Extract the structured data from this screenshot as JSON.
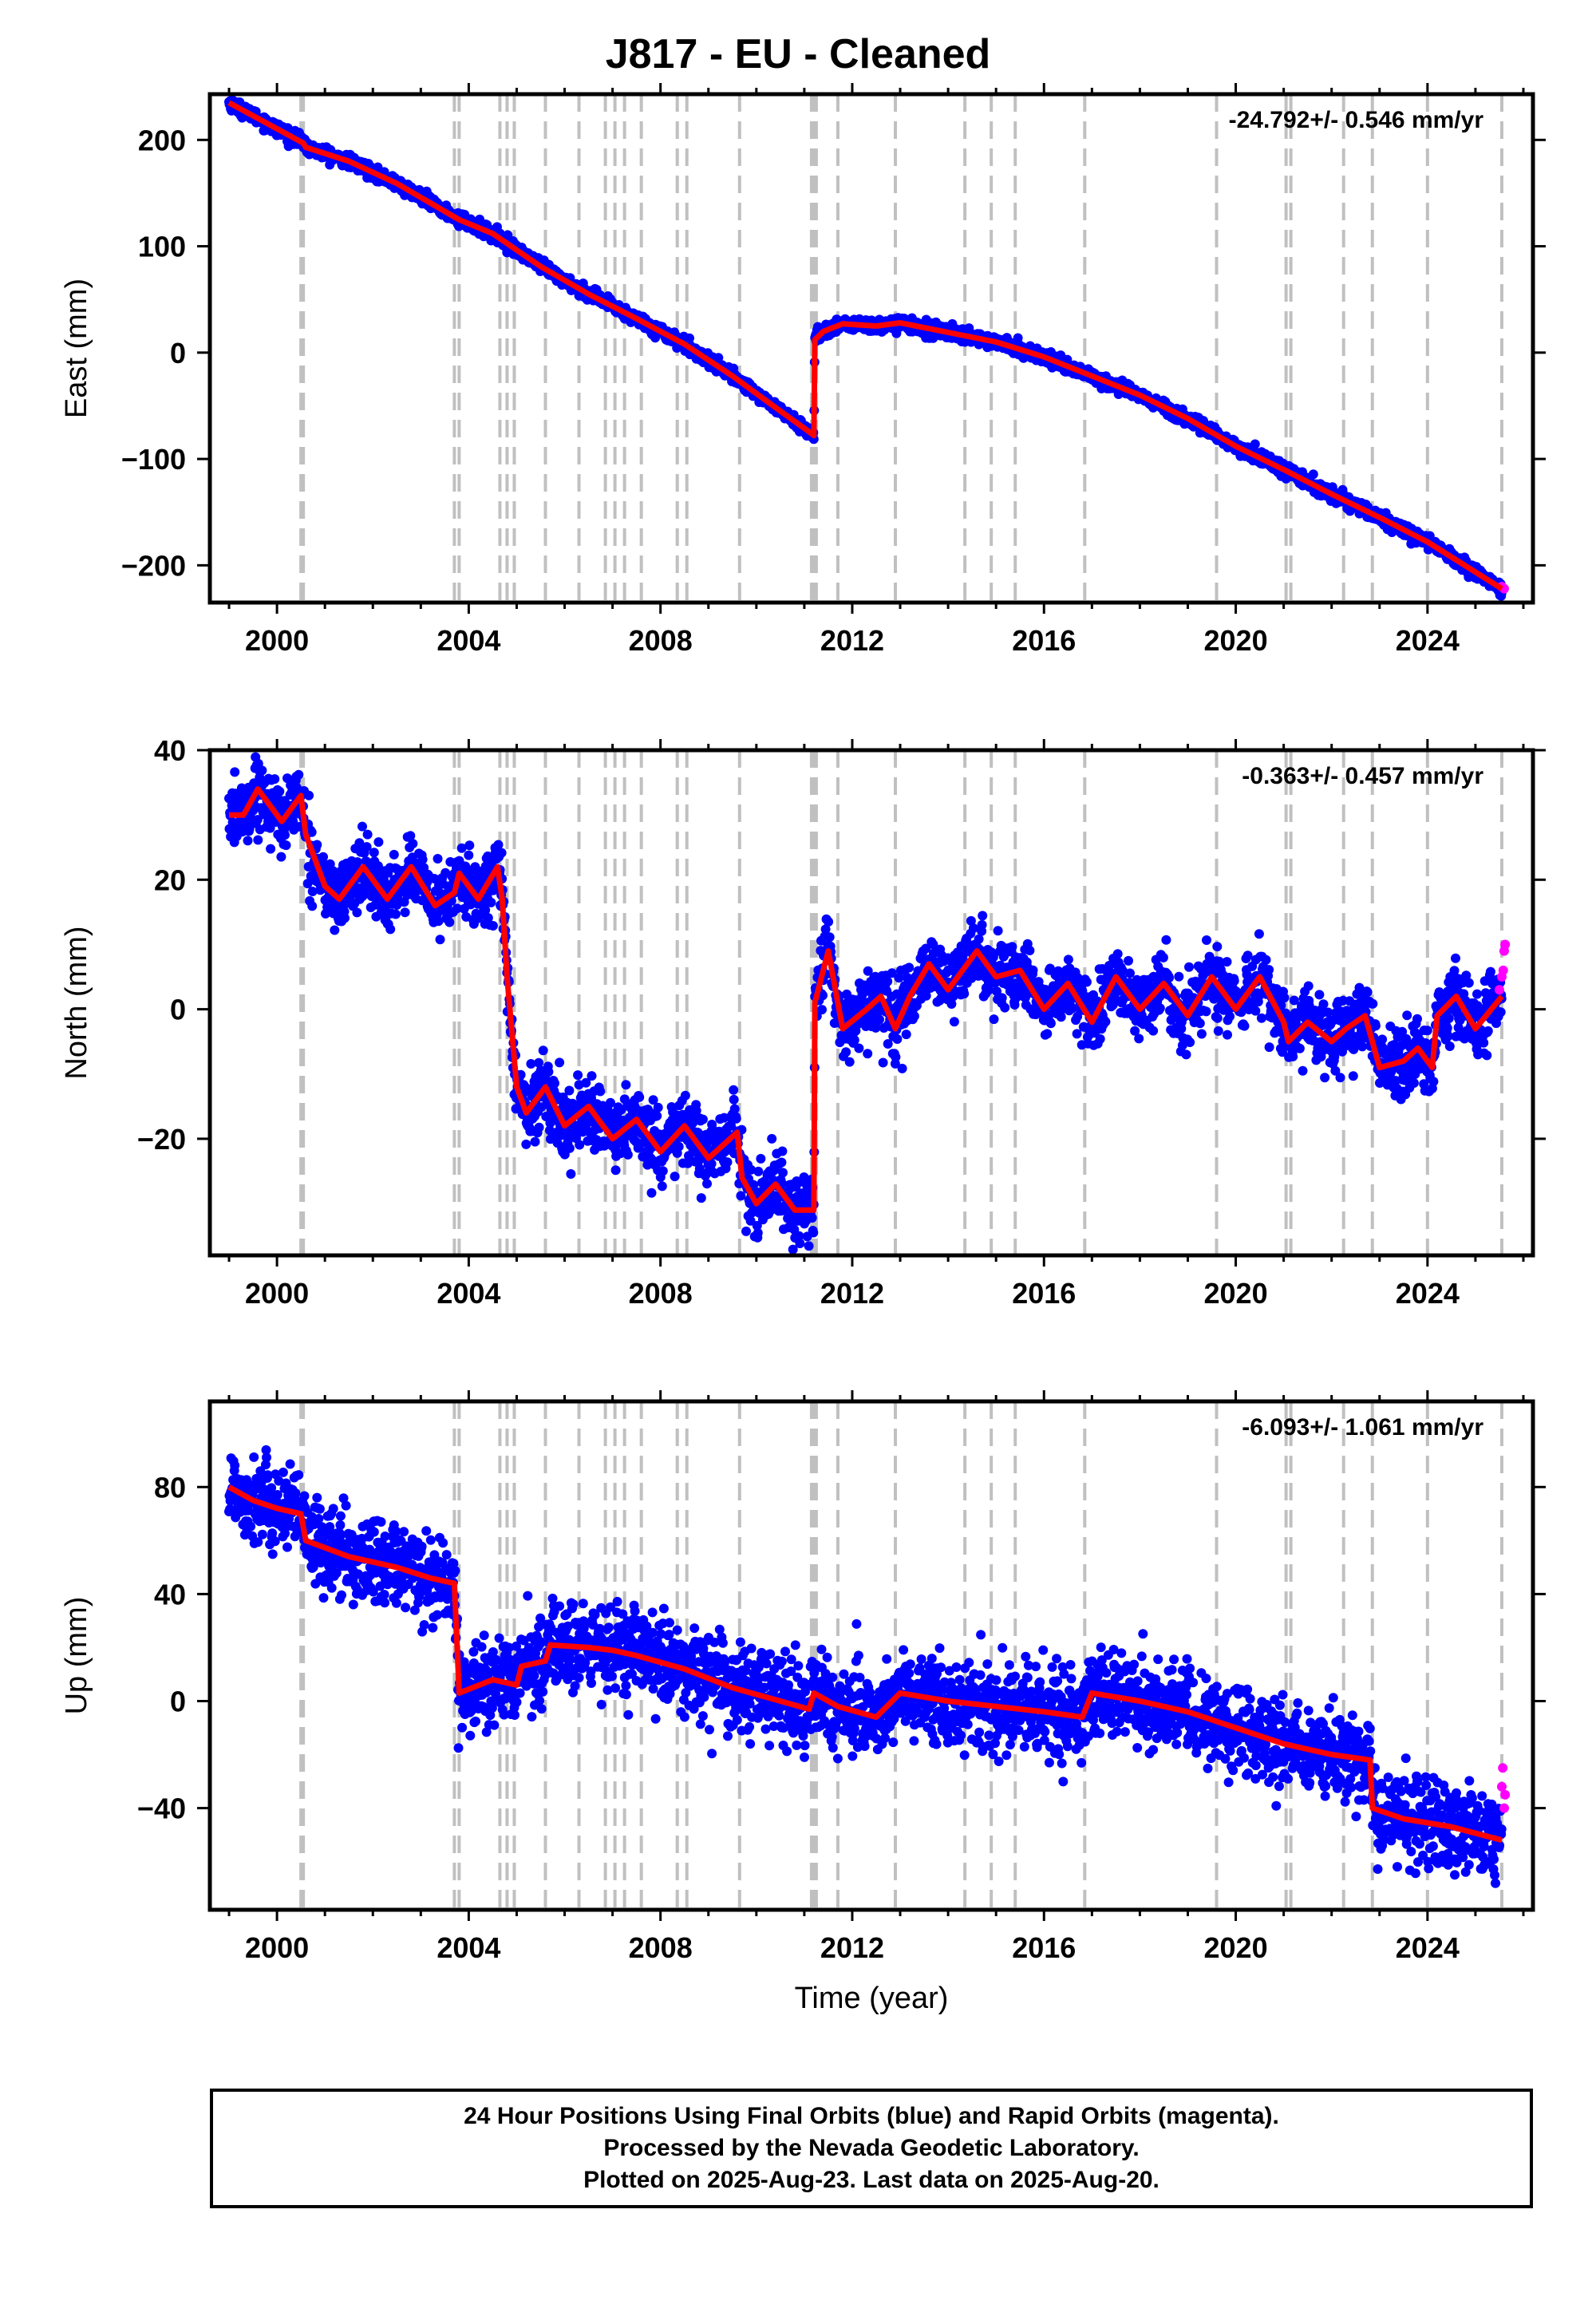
{
  "title": "J817  - EU - Cleaned",
  "colors": {
    "final": "#0000ff",
    "rapid": "#ff00ff",
    "model": "#ff0000",
    "events": "#c0c0c0",
    "frame": "#000000"
  },
  "footer": {
    "line1": "24 Hour Positions Using Final Orbits (blue) and Rapid Orbits (magenta).",
    "line2": "Processed by the Nevada Geodetic Laboratory.",
    "line3": "Plotted on 2025-Aug-23. Last data on 2025-Aug-20."
  },
  "chart_data": [
    {
      "type": "scatter",
      "component": "east",
      "ylabel": "East (mm)",
      "xlabel": "",
      "rate_label": "-24.792+/- 0.546 mm/yr",
      "xlim": [
        1998.6,
        2026.2
      ],
      "ylim": [
        -235,
        243
      ],
      "xticks": [
        2000,
        2004,
        2008,
        2012,
        2016,
        2020,
        2024
      ],
      "yticks": [
        -200,
        -100,
        0,
        100,
        200
      ],
      "ytick_labels": [
        "−200",
        "−100",
        "0",
        "100",
        "200"
      ],
      "model": [
        [
          1999.0,
          235
        ],
        [
          2000.55,
          197
        ],
        [
          2000.6,
          193
        ],
        [
          2001.5,
          180
        ],
        [
          2002.5,
          159
        ],
        [
          2003.8,
          125
        ],
        [
          2004.5,
          112
        ],
        [
          2005.5,
          81
        ],
        [
          2006.5,
          55
        ],
        [
          2007.5,
          32
        ],
        [
          2008.5,
          8
        ],
        [
          2009.5,
          -22
        ],
        [
          2010.5,
          -55
        ],
        [
          2011.15,
          -76
        ],
        [
          2011.2,
          -78
        ],
        [
          2011.22,
          12
        ],
        [
          2011.4,
          20
        ],
        [
          2011.8,
          27
        ],
        [
          2012.5,
          25
        ],
        [
          2013.0,
          28
        ],
        [
          2014.0,
          19
        ],
        [
          2015.0,
          10
        ],
        [
          2016.0,
          -4
        ],
        [
          2017.0,
          -22
        ],
        [
          2018.0,
          -40
        ],
        [
          2019.0,
          -62
        ],
        [
          2020.0,
          -88
        ],
        [
          2021.0,
          -110
        ],
        [
          2022.0,
          -133
        ],
        [
          2023.0,
          -155
        ],
        [
          2024.0,
          -178
        ],
        [
          2025.55,
          -222
        ]
      ],
      "scatter_sigma": 3,
      "rapid": [
        [
          2025.55,
          -220
        ],
        [
          2025.6,
          -222
        ]
      ]
    },
    {
      "type": "scatter",
      "component": "north",
      "ylabel": "North (mm)",
      "xlabel": "",
      "rate_label": "-0.363+/- 0.457 mm/yr",
      "xlim": [
        1998.6,
        2026.2
      ],
      "ylim": [
        -38,
        40
      ],
      "xticks": [
        2000,
        2004,
        2008,
        2012,
        2016,
        2020,
        2024
      ],
      "yticks": [
        -20,
        0,
        20,
        40
      ],
      "ytick_labels": [
        "−20",
        "0",
        "20",
        "40"
      ],
      "model": [
        [
          1999.0,
          30
        ],
        [
          1999.3,
          30
        ],
        [
          1999.6,
          34
        ],
        [
          2000.1,
          29
        ],
        [
          2000.5,
          33
        ],
        [
          2000.6,
          27
        ],
        [
          2001.0,
          19
        ],
        [
          2001.3,
          17
        ],
        [
          2001.8,
          22
        ],
        [
          2002.3,
          17
        ],
        [
          2002.8,
          22
        ],
        [
          2003.3,
          16
        ],
        [
          2003.7,
          18
        ],
        [
          2003.8,
          21
        ],
        [
          2004.2,
          17
        ],
        [
          2004.6,
          22
        ],
        [
          2004.7,
          17
        ],
        [
          2004.8,
          5
        ],
        [
          2005.0,
          -12
        ],
        [
          2005.2,
          -16
        ],
        [
          2005.6,
          -12
        ],
        [
          2006.0,
          -18
        ],
        [
          2006.5,
          -15
        ],
        [
          2007.0,
          -20
        ],
        [
          2007.5,
          -17
        ],
        [
          2008.0,
          -22
        ],
        [
          2008.5,
          -18
        ],
        [
          2009.0,
          -23
        ],
        [
          2009.6,
          -19
        ],
        [
          2009.7,
          -26
        ],
        [
          2010.0,
          -30
        ],
        [
          2010.4,
          -27
        ],
        [
          2010.8,
          -31
        ],
        [
          2011.15,
          -31
        ],
        [
          2011.2,
          -31
        ],
        [
          2011.22,
          1
        ],
        [
          2011.5,
          9
        ],
        [
          2011.8,
          -3
        ],
        [
          2012.3,
          0
        ],
        [
          2012.6,
          2
        ],
        [
          2012.9,
          -3
        ],
        [
          2013.2,
          2
        ],
        [
          2013.6,
          7
        ],
        [
          2014.0,
          3
        ],
        [
          2014.6,
          9
        ],
        [
          2015.0,
          5
        ],
        [
          2015.5,
          6
        ],
        [
          2016.0,
          0
        ],
        [
          2016.5,
          4
        ],
        [
          2017.0,
          -2
        ],
        [
          2017.5,
          5
        ],
        [
          2018.0,
          0
        ],
        [
          2018.5,
          4
        ],
        [
          2019.0,
          -1
        ],
        [
          2019.5,
          5
        ],
        [
          2020.0,
          0
        ],
        [
          2020.5,
          5
        ],
        [
          2021.0,
          -2
        ],
        [
          2021.1,
          -5
        ],
        [
          2021.5,
          -2
        ],
        [
          2022.0,
          -5
        ],
        [
          2022.3,
          -3
        ],
        [
          2022.7,
          -1
        ],
        [
          2023.0,
          -9
        ],
        [
          2023.5,
          -8
        ],
        [
          2023.8,
          -6
        ],
        [
          2024.1,
          -9
        ],
        [
          2024.2,
          -1
        ],
        [
          2024.6,
          2
        ],
        [
          2025.0,
          -3
        ],
        [
          2025.55,
          2
        ]
      ],
      "scatter_sigma": 2.6,
      "rapid": [
        [
          2025.5,
          3
        ],
        [
          2025.55,
          5
        ],
        [
          2025.58,
          6
        ],
        [
          2025.6,
          9
        ],
        [
          2025.62,
          10
        ]
      ]
    },
    {
      "type": "scatter",
      "component": "up",
      "ylabel": "Up (mm)",
      "xlabel": "Time (year)",
      "rate_label": "-6.093+/- 1.061 mm/yr",
      "xlim": [
        1998.6,
        2026.2
      ],
      "ylim": [
        -78,
        112
      ],
      "xticks": [
        2000,
        2004,
        2008,
        2012,
        2016,
        2020,
        2024
      ],
      "yticks": [
        -40,
        0,
        40,
        80
      ],
      "ytick_labels": [
        "−40",
        "0",
        "40",
        "80"
      ],
      "model": [
        [
          1999.0,
          80
        ],
        [
          1999.5,
          75
        ],
        [
          2000.0,
          72
        ],
        [
          2000.5,
          70
        ],
        [
          2000.6,
          60
        ],
        [
          2001.5,
          54
        ],
        [
          2002.5,
          50
        ],
        [
          2003.2,
          46
        ],
        [
          2003.7,
          44
        ],
        [
          2003.8,
          3
        ],
        [
          2004.5,
          8
        ],
        [
          2005.0,
          6
        ],
        [
          2005.1,
          13
        ],
        [
          2005.6,
          15
        ],
        [
          2005.7,
          21
        ],
        [
          2006.5,
          20
        ],
        [
          2007.0,
          19
        ],
        [
          2007.5,
          17
        ],
        [
          2008.5,
          12
        ],
        [
          2009.5,
          5
        ],
        [
          2010.5,
          0
        ],
        [
          2011.1,
          -3
        ],
        [
          2011.2,
          3
        ],
        [
          2011.7,
          -2
        ],
        [
          2012.5,
          -6
        ],
        [
          2013.0,
          3
        ],
        [
          2014.0,
          0
        ],
        [
          2015.0,
          -2
        ],
        [
          2016.0,
          -4
        ],
        [
          2016.8,
          -6
        ],
        [
          2017.0,
          3
        ],
        [
          2018.0,
          0
        ],
        [
          2019.0,
          -4
        ],
        [
          2020.0,
          -10
        ],
        [
          2021.0,
          -16
        ],
        [
          2022.0,
          -20
        ],
        [
          2022.8,
          -22
        ],
        [
          2022.85,
          -40
        ],
        [
          2023.5,
          -44
        ],
        [
          2024.5,
          -47
        ],
        [
          2025.55,
          -52
        ]
      ],
      "scatter_sigma": 8,
      "rapid": [
        [
          2025.55,
          -32
        ],
        [
          2025.57,
          -25
        ],
        [
          2025.6,
          -40
        ],
        [
          2025.62,
          -35
        ]
      ]
    }
  ],
  "event_years": [
    2000.5,
    2000.55,
    2003.7,
    2003.8,
    2004.65,
    2004.8,
    2004.95,
    2005.6,
    2006.3,
    2006.85,
    2007.05,
    2007.25,
    2007.6,
    2008.35,
    2008.55,
    2009.65,
    2011.15,
    2011.2,
    2011.25,
    2011.7,
    2012.9,
    2014.35,
    2014.9,
    2015.4,
    2016.85,
    2019.6,
    2021.05,
    2021.15,
    2022.25,
    2022.85,
    2024.0,
    2025.55
  ]
}
